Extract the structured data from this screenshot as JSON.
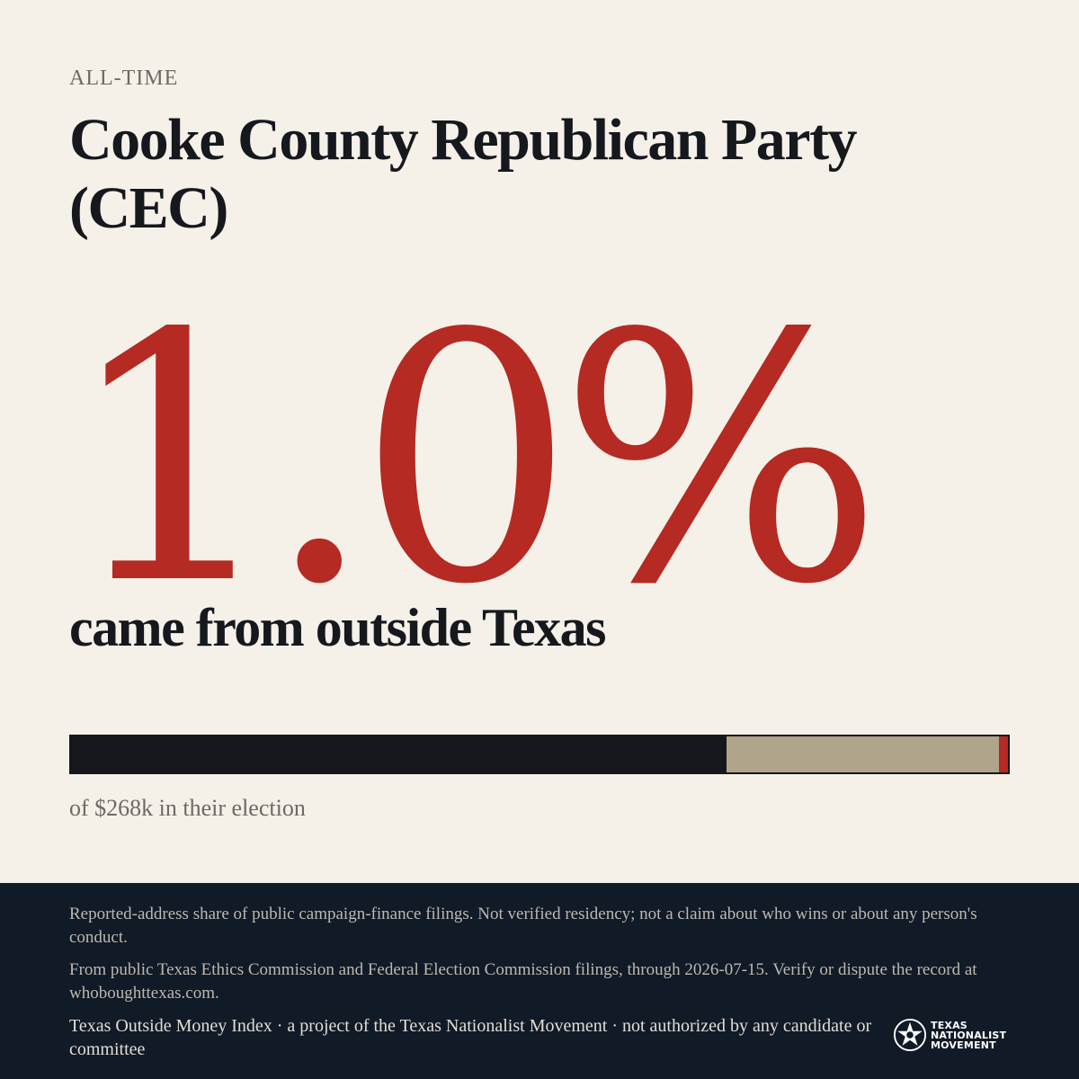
{
  "header": {
    "eyebrow": "ALL-TIME",
    "title": "Cooke County Republican Party (CEC)"
  },
  "headline": {
    "percent": "1.0%",
    "subline": "came from outside Texas"
  },
  "bar": {
    "in_district_fraction": 0.7,
    "rest_of_texas_fraction": 0.29,
    "outside_texas_fraction": 0.01,
    "colors": {
      "in_district": "#14171c",
      "rest_of_texas": "#b0a48a",
      "outside_texas": "#b52a22"
    }
  },
  "caption": "of $268k in their election",
  "footer": {
    "disclaimer": "Reported-address share of public campaign-finance filings. Not verified residency; not a claim about who wins or about any person's conduct.",
    "source": "From public Texas Ethics Commission and Federal Election Commission filings, through 2026-07-15. Verify or dispute the record at whoboughttexas.com.",
    "project": "Texas Outside Money Index · a project of the Texas Nationalist Movement · not authorized by any candidate or committee",
    "logo": {
      "icon": "star-seal-icon",
      "line1": "TEXAS",
      "line2": "NATIONALIST",
      "line3": "MOVEMENT"
    }
  }
}
